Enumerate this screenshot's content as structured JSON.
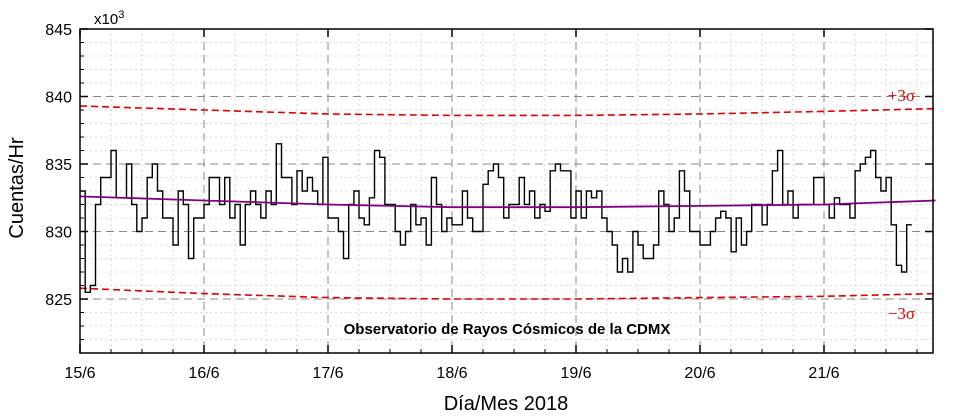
{
  "chart_data": {
    "type": "line",
    "step": true,
    "xlabel": "Día/Mes 2018",
    "ylabel": "Cuentas/Hr",
    "y_multiplier": "x10",
    "y_multiplier_exp": "3",
    "annotation": "Observatorio de Rayos Cósmicos de la CDMX",
    "xlim": [
      0,
      6.9
    ],
    "ylim": [
      821,
      845
    ],
    "x_ticks": [
      {
        "x": 0,
        "label": "15/6"
      },
      {
        "x": 1,
        "label": "16/6"
      },
      {
        "x": 2,
        "label": "17/6"
      },
      {
        "x": 3,
        "label": "18/6"
      },
      {
        "x": 4,
        "label": "19/6"
      },
      {
        "x": 5,
        "label": "20/6"
      },
      {
        "x": 6,
        "label": "21/6"
      }
    ],
    "y_ticks": [
      {
        "y": 825,
        "label": "825"
      },
      {
        "y": 830,
        "label": "830"
      },
      {
        "y": 835,
        "label": "835"
      },
      {
        "y": 840,
        "label": "840"
      },
      {
        "y": 845,
        "label": "845"
      }
    ],
    "grid": true,
    "colors": {
      "counts": "#000000",
      "trend": "#800080",
      "sigma": "#e00000",
      "grid_major": "#888888",
      "grid_minor": "#cccccc"
    },
    "series": [
      {
        "x_start": 0,
        "x_step": 0.04167,
        "values": [
          833,
          825.5,
          826,
          832,
          834,
          834,
          836,
          832.5,
          832.5,
          835,
          832,
          830,
          831,
          834,
          835,
          833,
          831,
          831,
          829,
          833,
          832,
          828,
          831,
          831,
          832,
          834,
          834,
          832,
          834,
          831,
          832,
          829,
          832,
          833,
          832,
          831,
          833,
          832,
          836.5,
          834,
          834,
          832,
          834.5,
          833,
          834,
          833,
          832,
          835.5,
          831,
          831,
          830,
          828,
          832,
          833,
          831,
          830.5,
          832.5,
          836,
          835.5,
          832,
          832,
          830,
          829,
          830,
          832,
          830.5,
          831,
          829,
          834,
          832,
          830,
          831,
          830.5,
          830.5,
          833,
          831,
          830,
          830,
          833.5,
          834.5,
          835,
          834,
          831,
          832,
          832,
          834,
          832,
          833,
          831,
          832,
          831.5,
          834.5,
          835,
          834.5,
          834.5,
          831,
          833,
          831,
          833,
          832.5,
          833,
          831,
          830,
          829,
          827,
          828,
          827,
          830,
          829,
          828,
          828,
          829,
          833,
          832,
          830,
          831,
          834.5,
          833,
          830,
          830,
          829,
          829,
          830,
          831,
          831.5,
          831,
          828.5,
          831,
          829,
          830,
          832,
          832,
          830.5,
          832,
          834.5,
          836,
          832,
          833,
          831,
          832,
          832,
          832,
          834,
          834,
          832,
          831,
          832.5,
          832,
          832,
          831,
          834.5,
          835,
          835.5,
          836,
          834,
          833,
          834,
          830.5,
          827.5,
          827,
          830.5
        ]
      },
      {
        "name": "trend",
        "x": [
          0,
          1,
          2,
          3,
          4,
          5,
          6,
          6.9
        ],
        "values": [
          832.6,
          832.3,
          832.0,
          831.8,
          831.8,
          831.9,
          832.0,
          832.3
        ]
      },
      {
        "name": "+3σ",
        "x": [
          0,
          1,
          2,
          3,
          4,
          5,
          6,
          6.9
        ],
        "values": [
          839.3,
          839.0,
          838.7,
          838.6,
          838.6,
          838.7,
          838.9,
          839.1
        ]
      },
      {
        "name": "−3σ",
        "x": [
          0,
          1,
          2,
          3,
          4,
          5,
          6,
          6.9
        ],
        "values": [
          825.8,
          825.4,
          825.1,
          825.0,
          825.0,
          825.1,
          825.2,
          825.4
        ]
      }
    ]
  }
}
